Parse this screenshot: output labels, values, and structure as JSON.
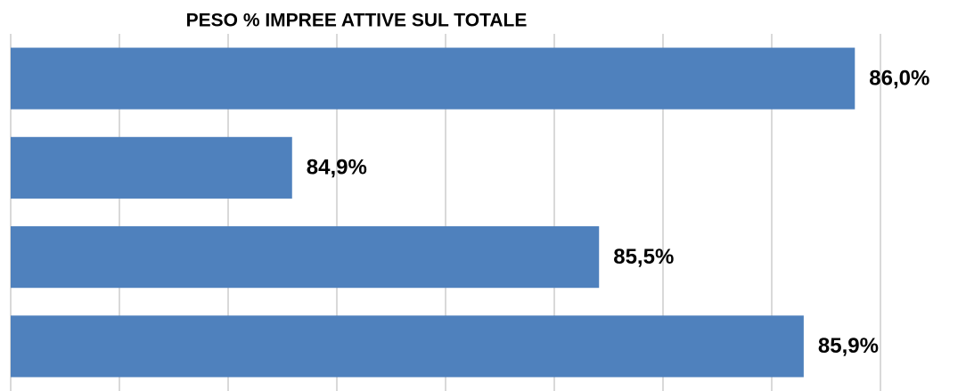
{
  "chart_data": {
    "type": "hbar",
    "title": "PESO % IMPREE ATTIVE SUL TOTALE",
    "categories": [
      null,
      null,
      null,
      null
    ],
    "values": [
      86.0,
      84.9,
      85.5,
      85.9
    ],
    "value_labels": [
      "86,0%",
      "84,9%",
      "85,5%",
      "85,9%"
    ],
    "color": "#4f81bd",
    "xlim": [
      84.35,
      86.05
    ],
    "xticks": [
      84.35,
      84.5625,
      84.775,
      84.9875,
      85.2,
      85.4125,
      85.625,
      85.8375,
      86.05
    ],
    "grid": true
  }
}
